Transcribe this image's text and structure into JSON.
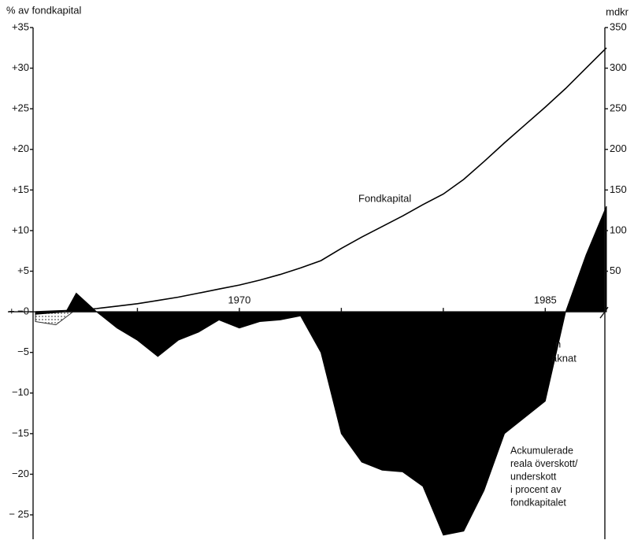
{
  "chart_data": {
    "type": "area",
    "y_label": "% av fondkapital",
    "y2_label": "mdkr",
    "xlim": [
      1960,
      1988
    ],
    "xticks_labeled": [
      1970,
      1985
    ],
    "xticks_minor": [
      1965,
      1975,
      1980
    ],
    "ylim": [
      -28,
      35
    ],
    "yticks": [
      {
        "value": 35,
        "label": "+35"
      },
      {
        "value": 30,
        "label": "+30"
      },
      {
        "value": 25,
        "label": "+25"
      },
      {
        "value": 20,
        "label": "+20"
      },
      {
        "value": 15,
        "label": "+15"
      },
      {
        "value": 10,
        "label": "+10"
      },
      {
        "value": 5,
        "label": "+5"
      },
      {
        "value": 0,
        "label": "+ −0"
      },
      {
        "value": -5,
        "label": "−5"
      },
      {
        "value": -10,
        "label": "−10"
      },
      {
        "value": -15,
        "label": "−15"
      },
      {
        "value": -20,
        "label": "−20"
      },
      {
        "value": -25,
        "label": "− 25"
      }
    ],
    "y2lim": [
      -280,
      350
    ],
    "y2ticks": [
      350,
      300,
      250,
      200,
      150,
      100,
      50
    ],
    "series": [
      {
        "kind": "dotted-area",
        "color": "#888888",
        "x": [
          1960,
          1961,
          1962,
          1963,
          1964,
          1965,
          1966,
          1967,
          1968,
          1969,
          1970,
          1971,
          1972,
          1973,
          1974
        ],
        "values": [
          -1.2,
          -1.6,
          0.3,
          0,
          -0.6,
          -0.8,
          -0.9,
          -0.8,
          -0.8,
          -0.7,
          -1.5,
          -1,
          -0.8,
          -0.4,
          0
        ]
      },
      {
        "kind": "filled-area",
        "color": "#000000",
        "x": [
          1960,
          1961.5,
          1962,
          1963,
          1964,
          1965,
          1966,
          1967,
          1968,
          1969,
          1970,
          1971,
          1972,
          1973,
          1974,
          1975,
          1976,
          1977,
          1978,
          1979,
          1980,
          1981,
          1982,
          1983,
          1984,
          1985,
          1986,
          1987,
          1988
        ],
        "values": [
          -0.3,
          0,
          2.3,
          0,
          -2,
          -3.5,
          -5.5,
          -3.5,
          -2.5,
          -1,
          -2,
          -1.2,
          -1,
          -0.5,
          -5,
          -15,
          -18.5,
          -19.5,
          -19.7,
          -21.5,
          -27.5,
          -27,
          -22,
          -15,
          -13,
          -11,
          0,
          7,
          13
        ]
      },
      {
        "kind": "line",
        "axis": "y2",
        "name": "Fondkapital",
        "color": "#000000",
        "x": [
          1960,
          1962,
          1963,
          1964,
          1965,
          1966,
          1967,
          1968,
          1969,
          1970,
          1971,
          1972,
          1973,
          1974,
          1975,
          1976,
          1977,
          1978,
          1979,
          1980,
          1981,
          1982,
          1983,
          1984,
          1985,
          1986,
          1987,
          1988
        ],
        "values": [
          0,
          2,
          4,
          7,
          10,
          14,
          18,
          23,
          28,
          33,
          39,
          46,
          54,
          63,
          78,
          92,
          105,
          118,
          132,
          145,
          163,
          185,
          208,
          230,
          252,
          275,
          300,
          325
        ]
      }
    ],
    "annotations": {
      "cut_top": "n",
      "cut_bottom": "äknat",
      "area_note": [
        "Ackumulerade",
        "reala överskott/",
        "underskott",
        "i procent av",
        "fondkapitalet"
      ]
    }
  }
}
